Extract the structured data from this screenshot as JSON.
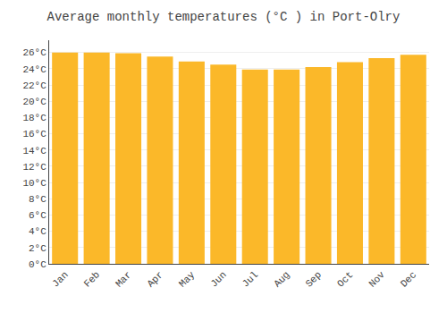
{
  "chart_data": {
    "type": "bar",
    "title": "Average monthly temperatures (°C ) in Port-Olry",
    "categories": [
      "Jan",
      "Feb",
      "Mar",
      "Apr",
      "May",
      "Jun",
      "Jul",
      "Aug",
      "Sep",
      "Oct",
      "Nov",
      "Dec"
    ],
    "values": [
      26.0,
      26.0,
      25.9,
      25.5,
      24.9,
      24.5,
      23.9,
      23.9,
      24.2,
      24.8,
      25.3,
      25.7
    ],
    "color": "#FBB829",
    "ylim": [
      0,
      27.5
    ],
    "yticks": [
      {
        "value": 0,
        "label": "0°C"
      },
      {
        "value": 2,
        "label": "2°C"
      },
      {
        "value": 4,
        "label": "4°C"
      },
      {
        "value": 6,
        "label": "6°C"
      },
      {
        "value": 8,
        "label": "8°C"
      },
      {
        "value": 10,
        "label": "10°C"
      },
      {
        "value": 12,
        "label": "12°C"
      },
      {
        "value": 14,
        "label": "14°C"
      },
      {
        "value": 16,
        "label": "16°C"
      },
      {
        "value": 18,
        "label": "18°C"
      },
      {
        "value": 20,
        "label": "20°C"
      },
      {
        "value": 22,
        "label": "22°C"
      },
      {
        "value": 24,
        "label": "24°C"
      },
      {
        "value": 26,
        "label": "26°C"
      }
    ],
    "grid": true
  }
}
